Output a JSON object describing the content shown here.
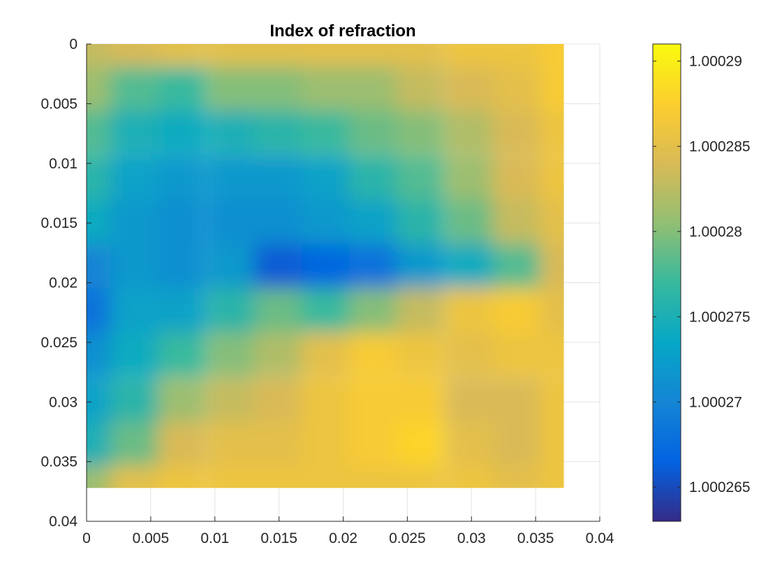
{
  "chart_data": {
    "type": "heatmap",
    "title": "Index of refraction",
    "xlabel": "",
    "ylabel": "",
    "xlim": [
      0,
      0.04
    ],
    "ylim": [
      0,
      0.04
    ],
    "y_reversed": true,
    "grid": true,
    "x_ticks": [
      "0",
      "0.005",
      "0.01",
      "0.015",
      "0.02",
      "0.025",
      "0.03",
      "0.035",
      "0.04"
    ],
    "y_ticks": [
      "0",
      "0.005",
      "0.01",
      "0.015",
      "0.02",
      "0.025",
      "0.03",
      "0.035",
      "0.04"
    ],
    "colormap": "parula",
    "colormap_stops": [
      "#352a87",
      "#0363e1",
      "#1485d4",
      "#06a7c6",
      "#38b99e",
      "#92bf73",
      "#d9ba56",
      "#fcce2e",
      "#f9fb0e"
    ],
    "clim": [
      1.000263,
      1.000291
    ],
    "colorbar": {
      "ticks": [
        "1.000265",
        "1.00027",
        "1.000275",
        "1.00028",
        "1.000285",
        "1.00029"
      ],
      "tick_values": [
        1.000265,
        1.00027,
        1.000275,
        1.00028,
        1.000285,
        1.00029
      ]
    },
    "data_extent": {
      "x": [
        0,
        0.0372
      ],
      "y": [
        0,
        0.0372
      ]
    },
    "grid_x": [
      0,
      0.0037,
      0.0074,
      0.0112,
      0.0149,
      0.0186,
      0.0223,
      0.026,
      0.0298,
      0.0335,
      0.0372
    ],
    "grid_y": [
      0,
      0.0037,
      0.0074,
      0.0112,
      0.0149,
      0.0186,
      0.0223,
      0.026,
      0.0298,
      0.0335,
      0.0372
    ],
    "values": [
      [
        1.000283,
        1.000284,
        1.000285,
        1.000285,
        1.000285,
        1.000285,
        1.000285,
        1.000285,
        1.000286,
        1.000286,
        1.000287
      ],
      [
        1.000281,
        1.000278,
        1.000277,
        1.00028,
        1.00028,
        1.000281,
        1.000281,
        1.000283,
        1.000284,
        1.000285,
        1.000287
      ],
      [
        1.000278,
        1.000275,
        1.000274,
        1.000275,
        1.000276,
        1.000277,
        1.000279,
        1.00028,
        1.000282,
        1.000284,
        1.000286
      ],
      [
        1.000276,
        1.000273,
        1.000272,
        1.000272,
        1.000272,
        1.000273,
        1.000276,
        1.000278,
        1.000281,
        1.000284,
        1.000286
      ],
      [
        1.000274,
        1.000272,
        1.000271,
        1.000271,
        1.000271,
        1.000272,
        1.000273,
        1.000276,
        1.000279,
        1.000283,
        1.000285
      ],
      [
        1.00027,
        1.000272,
        1.000271,
        1.000272,
        1.000266,
        1.000267,
        1.000268,
        1.000272,
        1.000274,
        1.000278,
        1.000284
      ],
      [
        1.000268,
        1.000273,
        1.000273,
        1.000276,
        1.000279,
        1.000277,
        1.00028,
        1.000283,
        1.000286,
        1.000287,
        1.000285
      ],
      [
        1.000271,
        1.000274,
        1.000277,
        1.00028,
        1.000282,
        1.000285,
        1.000287,
        1.000286,
        1.000285,
        1.000286,
        1.000286
      ],
      [
        1.000273,
        1.000276,
        1.000281,
        1.000283,
        1.000284,
        1.000286,
        1.000287,
        1.000287,
        1.000284,
        1.000284,
        1.000286
      ],
      [
        1.000275,
        1.000279,
        1.000284,
        1.000285,
        1.000285,
        1.000286,
        1.000287,
        1.000288,
        1.000285,
        1.000284,
        1.000286
      ],
      [
        1.000281,
        1.000285,
        1.000286,
        1.000286,
        1.000286,
        1.000286,
        1.000286,
        1.000286,
        1.000286,
        1.000285,
        1.000286
      ]
    ]
  }
}
